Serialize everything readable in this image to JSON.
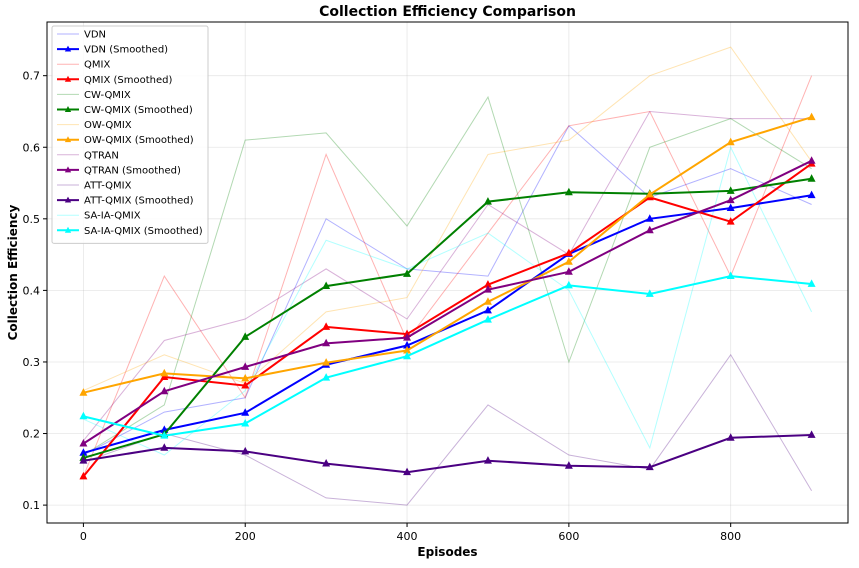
{
  "chart_data": {
    "type": "line",
    "title": "Collection Efficiency Comparison",
    "xlabel": "Episodes",
    "ylabel": "Collection Efficiency",
    "xlim": [
      -45,
      945
    ],
    "ylim": [
      0.075,
      0.775
    ],
    "xticks": [
      0,
      200,
      400,
      600,
      800
    ],
    "yticks": [
      0.1,
      0.2,
      0.3,
      0.4,
      0.5,
      0.6,
      0.7
    ],
    "grid": true,
    "legend_position": "top-left",
    "x": [
      0,
      100,
      200,
      300,
      400,
      500,
      600,
      700,
      800,
      900
    ],
    "series": [
      {
        "name": "VDN",
        "color": "#0000ff",
        "style": "raw",
        "values": [
          0.17,
          0.23,
          0.25,
          0.5,
          0.43,
          0.42,
          0.63,
          0.53,
          0.57,
          0.52
        ]
      },
      {
        "name": "VDN (Smoothed)",
        "color": "#0000ff",
        "style": "smoothed",
        "values": [
          0.173,
          0.205,
          0.229,
          0.296,
          0.323,
          0.372,
          0.451,
          0.5,
          0.515,
          0.533
        ]
      },
      {
        "name": "QMIX",
        "color": "#ff0000",
        "style": "raw",
        "values": [
          0.14,
          0.42,
          0.25,
          0.59,
          0.33,
          0.48,
          0.63,
          0.65,
          0.42,
          0.7
        ]
      },
      {
        "name": "QMIX (Smoothed)",
        "color": "#ff0000",
        "style": "smoothed",
        "values": [
          0.14,
          0.279,
          0.267,
          0.349,
          0.339,
          0.408,
          0.452,
          0.53,
          0.496,
          0.577
        ]
      },
      {
        "name": "CW-QMIX",
        "color": "#008000",
        "style": "raw",
        "values": [
          0.17,
          0.24,
          0.61,
          0.62,
          0.49,
          0.67,
          0.3,
          0.6,
          0.64,
          0.57
        ]
      },
      {
        "name": "CW-QMIX (Smoothed)",
        "color": "#008000",
        "style": "smoothed",
        "values": [
          0.166,
          0.199,
          0.335,
          0.406,
          0.423,
          0.524,
          0.537,
          0.535,
          0.539,
          0.556
        ]
      },
      {
        "name": "OW-QMIX",
        "color": "#ffa500",
        "style": "raw",
        "values": [
          0.26,
          0.31,
          0.27,
          0.37,
          0.39,
          0.59,
          0.61,
          0.7,
          0.74,
          0.58
        ]
      },
      {
        "name": "OW-QMIX (Smoothed)",
        "color": "#ffa500",
        "style": "smoothed",
        "values": [
          0.257,
          0.284,
          0.277,
          0.299,
          0.316,
          0.384,
          0.44,
          0.534,
          0.607,
          0.642
        ]
      },
      {
        "name": "QTRAN",
        "color": "#800080",
        "style": "raw",
        "values": [
          0.19,
          0.33,
          0.36,
          0.43,
          0.36,
          0.52,
          0.45,
          0.65,
          0.64,
          0.64
        ]
      },
      {
        "name": "QTRAN (Smoothed)",
        "color": "#800080",
        "style": "smoothed",
        "values": [
          0.186,
          0.259,
          0.293,
          0.326,
          0.334,
          0.401,
          0.426,
          0.484,
          0.526,
          0.581
        ]
      },
      {
        "name": "ATT-QMIX",
        "color": "#4b0082",
        "style": "raw",
        "values": [
          0.16,
          0.2,
          0.17,
          0.11,
          0.1,
          0.24,
          0.17,
          0.15,
          0.31,
          0.12
        ]
      },
      {
        "name": "ATT-QMIX (Smoothed)",
        "color": "#4b0082",
        "style": "smoothed",
        "values": [
          0.162,
          0.18,
          0.175,
          0.158,
          0.146,
          0.162,
          0.155,
          0.153,
          0.194,
          0.198
        ]
      },
      {
        "name": "SA-IA-QMIX",
        "color": "#00ffff",
        "style": "raw",
        "values": [
          0.22,
          0.17,
          0.26,
          0.47,
          0.43,
          0.48,
          0.4,
          0.18,
          0.6,
          0.37
        ]
      },
      {
        "name": "SA-IA-QMIX (Smoothed)",
        "color": "#00ffff",
        "style": "smoothed",
        "values": [
          0.224,
          0.197,
          0.214,
          0.278,
          0.308,
          0.359,
          0.407,
          0.395,
          0.42,
          0.409
        ]
      }
    ]
  }
}
